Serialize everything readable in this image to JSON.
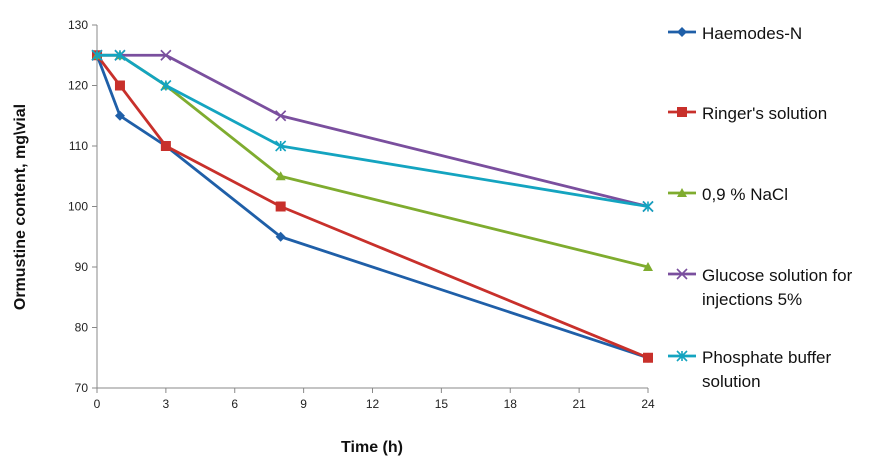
{
  "chart_data": {
    "type": "line",
    "title": "",
    "xlabel": "Time (h)",
    "ylabel": "Ormustine content, mg\\vial",
    "xlim": [
      0,
      24
    ],
    "ylim": [
      70,
      130
    ],
    "xticks": [
      "0",
      "3",
      "6",
      "9",
      "12",
      "15",
      "18",
      "21",
      "24"
    ],
    "yticks": [
      "70",
      "80",
      "90",
      "100",
      "110",
      "120",
      "130"
    ],
    "legend_position": "right",
    "series": [
      {
        "name": "Haemodes-N",
        "color": "#1f5fa8",
        "marker": "diamond",
        "x": [
          0,
          1,
          3,
          8,
          24
        ],
        "y": [
          125,
          115,
          110,
          95,
          75
        ]
      },
      {
        "name": "Ringer's solution",
        "color": "#c8302b",
        "marker": "square",
        "x": [
          0,
          1,
          3,
          8,
          24
        ],
        "y": [
          125,
          120,
          110,
          100,
          75
        ]
      },
      {
        "name": "0,9 % NaCl",
        "color": "#7fac2f",
        "marker": "triangle",
        "x": [
          0,
          1,
          3,
          8,
          24
        ],
        "y": [
          125,
          125,
          120,
          105,
          90
        ]
      },
      {
        "name": "Glucose solution for injections 5%",
        "color": "#7a4f9e",
        "marker": "x",
        "x": [
          0,
          1,
          3,
          8,
          24
        ],
        "y": [
          125,
          125,
          125,
          115,
          100
        ]
      },
      {
        "name": "Phosphate buffer solution",
        "color": "#14a4c0",
        "marker": "star",
        "x": [
          0,
          1,
          3,
          8,
          24
        ],
        "y": [
          125,
          125,
          120,
          110,
          100
        ]
      }
    ]
  }
}
